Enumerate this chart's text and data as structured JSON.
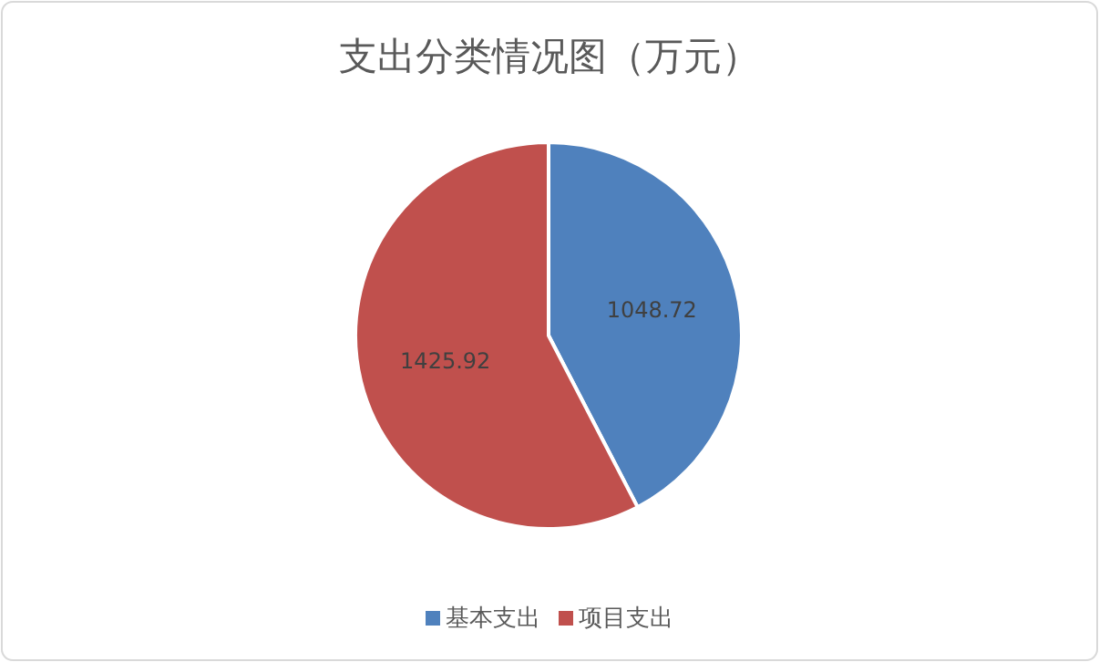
{
  "chart_data": {
    "type": "pie",
    "title": "支出分类情况图（万元）",
    "categories": [
      "基本支出",
      "项目支出"
    ],
    "values": [
      1048.72,
      1425.92
    ],
    "colors": [
      "#4f81bd",
      "#c0504d"
    ],
    "data_labels": true,
    "legend": "bottom"
  }
}
